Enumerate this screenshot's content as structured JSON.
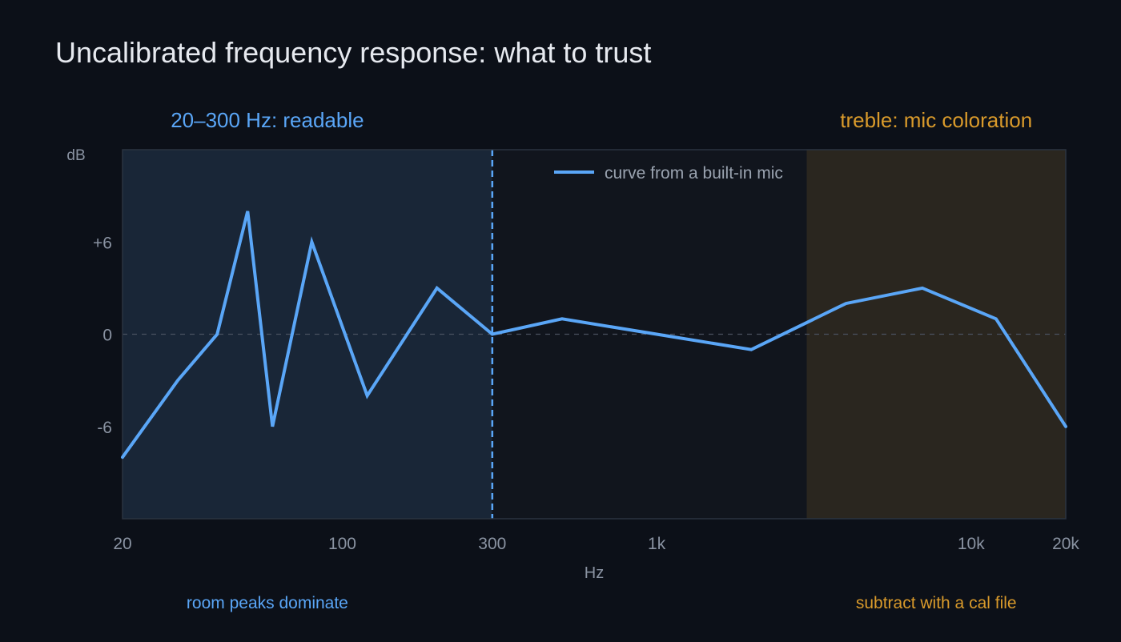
{
  "chart_data": {
    "type": "line",
    "title": "Uncalibrated frequency response: what to trust",
    "xlabel": "Hz",
    "ylabel": "dB",
    "x_scale": "log",
    "xlim": [
      20,
      20000
    ],
    "ylim": [
      -12,
      12
    ],
    "x_ticks": [
      {
        "value": 20,
        "label": "20"
      },
      {
        "value": 100,
        "label": "100"
      },
      {
        "value": 300,
        "label": "300"
      },
      {
        "value": 1000,
        "label": "1k"
      },
      {
        "value": 10000,
        "label": "10k"
      },
      {
        "value": 20000,
        "label": "20k"
      }
    ],
    "y_ticks": [
      {
        "value": 6,
        "label": "+6"
      },
      {
        "value": 0,
        "label": "0"
      },
      {
        "value": -6,
        "label": "-6"
      }
    ],
    "reference_line": {
      "y": 0
    },
    "legend": {
      "position": "top-center"
    },
    "series": [
      {
        "name": "curve from a built-in mic",
        "color": "#5aa6f7",
        "x": [
          20,
          30,
          40,
          50,
          60,
          80,
          120,
          200,
          300,
          500,
          1000,
          2000,
          4000,
          7000,
          12000,
          20000
        ],
        "y": [
          -8,
          -3,
          0,
          8,
          -6,
          6,
          -4,
          3,
          0,
          1,
          0,
          -1,
          2,
          3,
          1,
          -6
        ]
      }
    ],
    "regions": [
      {
        "id": "readable",
        "x_start": 20,
        "x_end": 300,
        "color": "#5aa6f7",
        "label": "20–300 Hz: readable",
        "note": "room peaks dominate"
      },
      {
        "id": "treble",
        "x_start": 3000,
        "x_end": 20000,
        "color": "#d99a2b",
        "label": "treble: mic coloration",
        "note": "subtract with a cal file"
      }
    ],
    "divider": {
      "x": 300,
      "color": "#5aa6f7"
    }
  }
}
